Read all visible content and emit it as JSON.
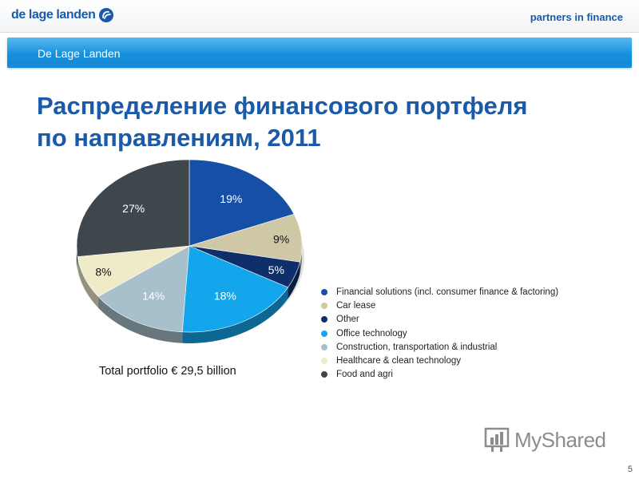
{
  "header": {
    "logo_text": "de lage landen",
    "tagline": "partners in finance"
  },
  "section_bar": {
    "label": "De Lage Landen"
  },
  "slide": {
    "title_line1": "Распределение финансового портфеля",
    "title_line2": "по направлениям, 2011",
    "total_label": "Total portfolio € 29,5 billion",
    "page_number": "5"
  },
  "watermark": {
    "text": "MyShared",
    "icon": "bar-chart-icon"
  },
  "chart_data": {
    "type": "pie",
    "title": "",
    "start_angle_deg": 0,
    "direction": "clockwise",
    "legend_position": "right",
    "slices": [
      {
        "label": "Financial solutions (incl. consumer finance & factoring)",
        "value": 19,
        "value_label": "19%",
        "color": "#1650a6",
        "label_color": "#ffffff"
      },
      {
        "label": "Car lease",
        "value": 9,
        "value_label": "9%",
        "color": "#cfc8a6",
        "label_color": "#111111"
      },
      {
        "label": "Other",
        "value": 5,
        "value_label": "5%",
        "color": "#0f2f6b",
        "label_color": "#ffffff"
      },
      {
        "label": "Office technology",
        "value": 18,
        "value_label": "18%",
        "color": "#14a6ec",
        "label_color": "#ffffff"
      },
      {
        "label": "Construction, transportation & industrial",
        "value": 14,
        "value_label": "14%",
        "color": "#a8bfcc",
        "label_color": "#ffffff"
      },
      {
        "label": "Healthcare & clean technology",
        "value": 8,
        "value_label": "8%",
        "color": "#efebc9",
        "label_color": "#111111"
      },
      {
        "label": "Food and agri",
        "value": 27,
        "value_label": "27%",
        "color": "#3f474d",
        "label_color": "#ffffff"
      }
    ]
  }
}
